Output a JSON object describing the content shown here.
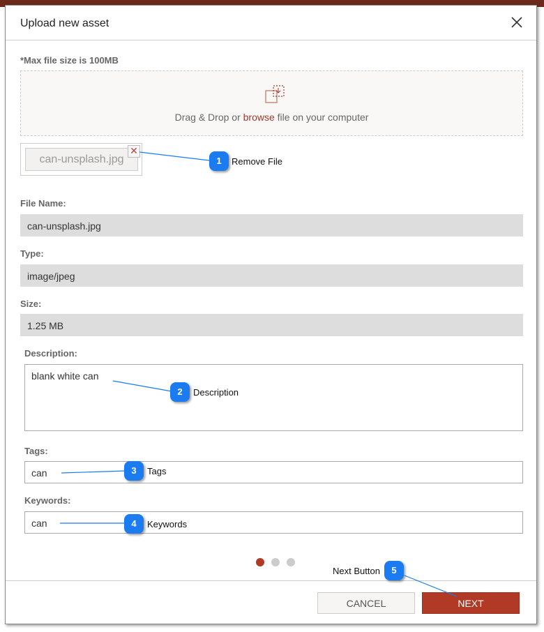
{
  "dialog": {
    "title": "Upload new asset",
    "close_icon": "close-icon"
  },
  "upload": {
    "max_size_note": "*Max file size is 100MB",
    "drop_prefix": "Drag & Drop or ",
    "browse_link": "browse",
    "drop_suffix": " file on your computer",
    "icon": "upload-file-icon"
  },
  "file_chip": {
    "name": "can-unsplash.jpg",
    "remove_label": "✕"
  },
  "fields": {
    "file_name": {
      "label": "File Name:",
      "value": "can-unsplash.jpg"
    },
    "type": {
      "label": "Type:",
      "value": "image/jpeg"
    },
    "size": {
      "label": "Size:",
      "value": "1.25 MB"
    },
    "description": {
      "label": "Description:",
      "value": "blank white can"
    },
    "tags": {
      "label": "Tags:",
      "value": "can"
    },
    "keywords": {
      "label": "Keywords:",
      "value": "can"
    }
  },
  "pagination": {
    "current": 1,
    "total": 3,
    "active_color": "#b03a26"
  },
  "footer": {
    "cancel_label": "CANCEL",
    "next_label": "NEXT"
  },
  "callouts": [
    {
      "num": "1",
      "label": "Remove File"
    },
    {
      "num": "2",
      "label": "Description"
    },
    {
      "num": "3",
      "label": "Tags"
    },
    {
      "num": "4",
      "label": "Keywords"
    },
    {
      "num": "5",
      "label": "Next Button"
    }
  ],
  "colors": {
    "accent": "#b03a26",
    "callout": "#1a7cf0"
  }
}
